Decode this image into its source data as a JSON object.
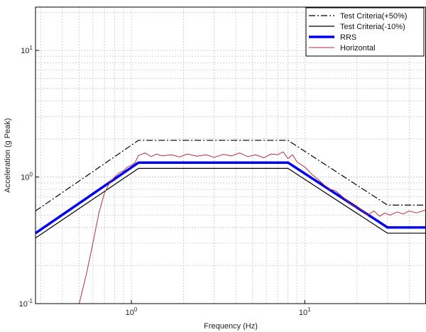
{
  "chart_data": {
    "type": "line",
    "xlabel": "Frequency (Hz)",
    "ylabel": "Acceleration (g Peak)",
    "xscale": "log",
    "yscale": "log",
    "xlim": [
      0.28,
      50
    ],
    "ylim": [
      0.1,
      22
    ],
    "grid": true,
    "legend_position": "top-right",
    "x_ticks": [
      {
        "value": 1,
        "base": "10",
        "exp": "0"
      },
      {
        "value": 10,
        "base": "10",
        "exp": "1"
      }
    ],
    "y_ticks": [
      {
        "value": 0.1,
        "base": "10",
        "exp": "-1"
      },
      {
        "value": 1,
        "base": "10",
        "exp": "0"
      },
      {
        "value": 10,
        "base": "10",
        "exp": "1"
      }
    ],
    "series": [
      {
        "name": "Test Criteria(+50%)",
        "color": "#000000",
        "style": "dashdot",
        "width": 1.2,
        "x": [
          0.28,
          1.1,
          8.0,
          30.0,
          50.0
        ],
        "y": [
          0.54,
          1.95,
          1.95,
          0.6,
          0.6
        ]
      },
      {
        "name": "Test Criteria(-10%)",
        "color": "#000000",
        "style": "solid",
        "width": 1.2,
        "x": [
          0.28,
          1.1,
          8.0,
          30.0,
          50.0
        ],
        "y": [
          0.33,
          1.17,
          1.17,
          0.36,
          0.36
        ]
      },
      {
        "name": "RRS",
        "color": "#0000ee",
        "style": "solid",
        "width": 3.5,
        "x": [
          0.28,
          1.1,
          8.0,
          30.0,
          50.0
        ],
        "y": [
          0.36,
          1.3,
          1.3,
          0.4,
          0.4
        ]
      },
      {
        "name": "Horizontal",
        "color": "#b0303a",
        "style": "solid",
        "width": 1,
        "x": [
          0.5,
          0.55,
          0.6,
          0.65,
          0.7,
          0.75,
          0.8,
          0.85,
          0.9,
          0.95,
          1.0,
          1.05,
          1.1,
          1.2,
          1.3,
          1.4,
          1.5,
          1.7,
          1.9,
          2.1,
          2.4,
          2.7,
          3.0,
          3.4,
          3.8,
          4.2,
          4.7,
          5.2,
          5.8,
          6.4,
          7.0,
          7.5,
          8.0,
          8.5,
          9.0,
          10.0,
          11.0,
          12.0,
          13.0,
          14.0,
          15.0,
          16.5,
          18.0,
          19.5,
          21.0,
          23.0,
          25.0,
          27.0,
          29.0,
          31.0,
          34.0,
          37.0,
          40.0,
          44.0,
          50.0
        ],
        "y": [
          0.1,
          0.17,
          0.3,
          0.52,
          0.75,
          0.9,
          1.0,
          1.08,
          1.12,
          1.2,
          1.24,
          1.3,
          1.48,
          1.55,
          1.45,
          1.52,
          1.47,
          1.5,
          1.44,
          1.52,
          1.46,
          1.5,
          1.43,
          1.51,
          1.47,
          1.55,
          1.45,
          1.5,
          1.42,
          1.52,
          1.5,
          1.58,
          1.4,
          1.5,
          1.32,
          1.2,
          1.05,
          0.95,
          0.86,
          0.8,
          0.78,
          0.7,
          0.63,
          0.58,
          0.56,
          0.5,
          0.54,
          0.49,
          0.52,
          0.5,
          0.53,
          0.51,
          0.54,
          0.52,
          0.55
        ]
      }
    ]
  }
}
